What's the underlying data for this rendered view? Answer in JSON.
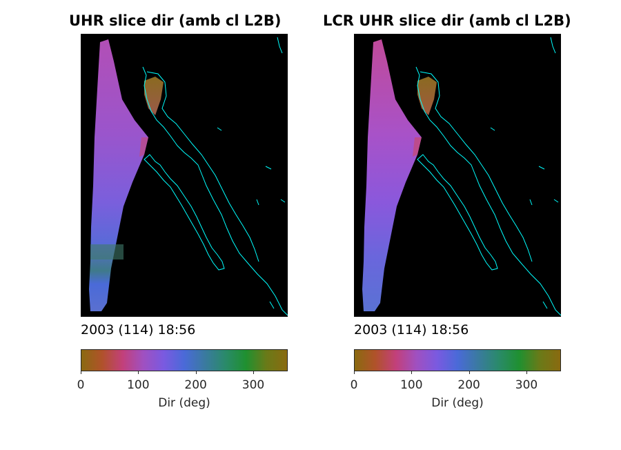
{
  "chart_data": [
    {
      "type": "heatmap",
      "title": "UHR slice dir (amb cl L2B)",
      "timestamp": "2003 (114) 18:56",
      "colorbar": {
        "label": "Dir (deg)",
        "range": [
          0,
          360
        ],
        "ticks": [
          0,
          100,
          200,
          300
        ],
        "colormap": [
          "#8a6a10",
          "#b0522a",
          "#c2407a",
          "#a050c0",
          "#7a5ae0",
          "#4a6ad8",
          "#3a7aa0",
          "#2a8a6a",
          "#1f9030",
          "#6a7a18",
          "#8a6a10"
        ]
      },
      "coastline_color": "#00ffff",
      "background": "#000000"
    },
    {
      "type": "heatmap",
      "title": "LCR UHR slice dir (amb cl L2B)",
      "timestamp": "2003 (114) 18:56",
      "colorbar": {
        "label": "Dir (deg)",
        "range": [
          0,
          360
        ],
        "ticks": [
          0,
          100,
          200,
          300
        ],
        "colormap": [
          "#8a6a10",
          "#b0522a",
          "#c2407a",
          "#a050c0",
          "#7a5ae0",
          "#4a6ad8",
          "#3a7aa0",
          "#2a8a6a",
          "#1f9030",
          "#6a7a18",
          "#8a6a10"
        ]
      },
      "coastline_color": "#00ffff",
      "background": "#000000"
    }
  ]
}
